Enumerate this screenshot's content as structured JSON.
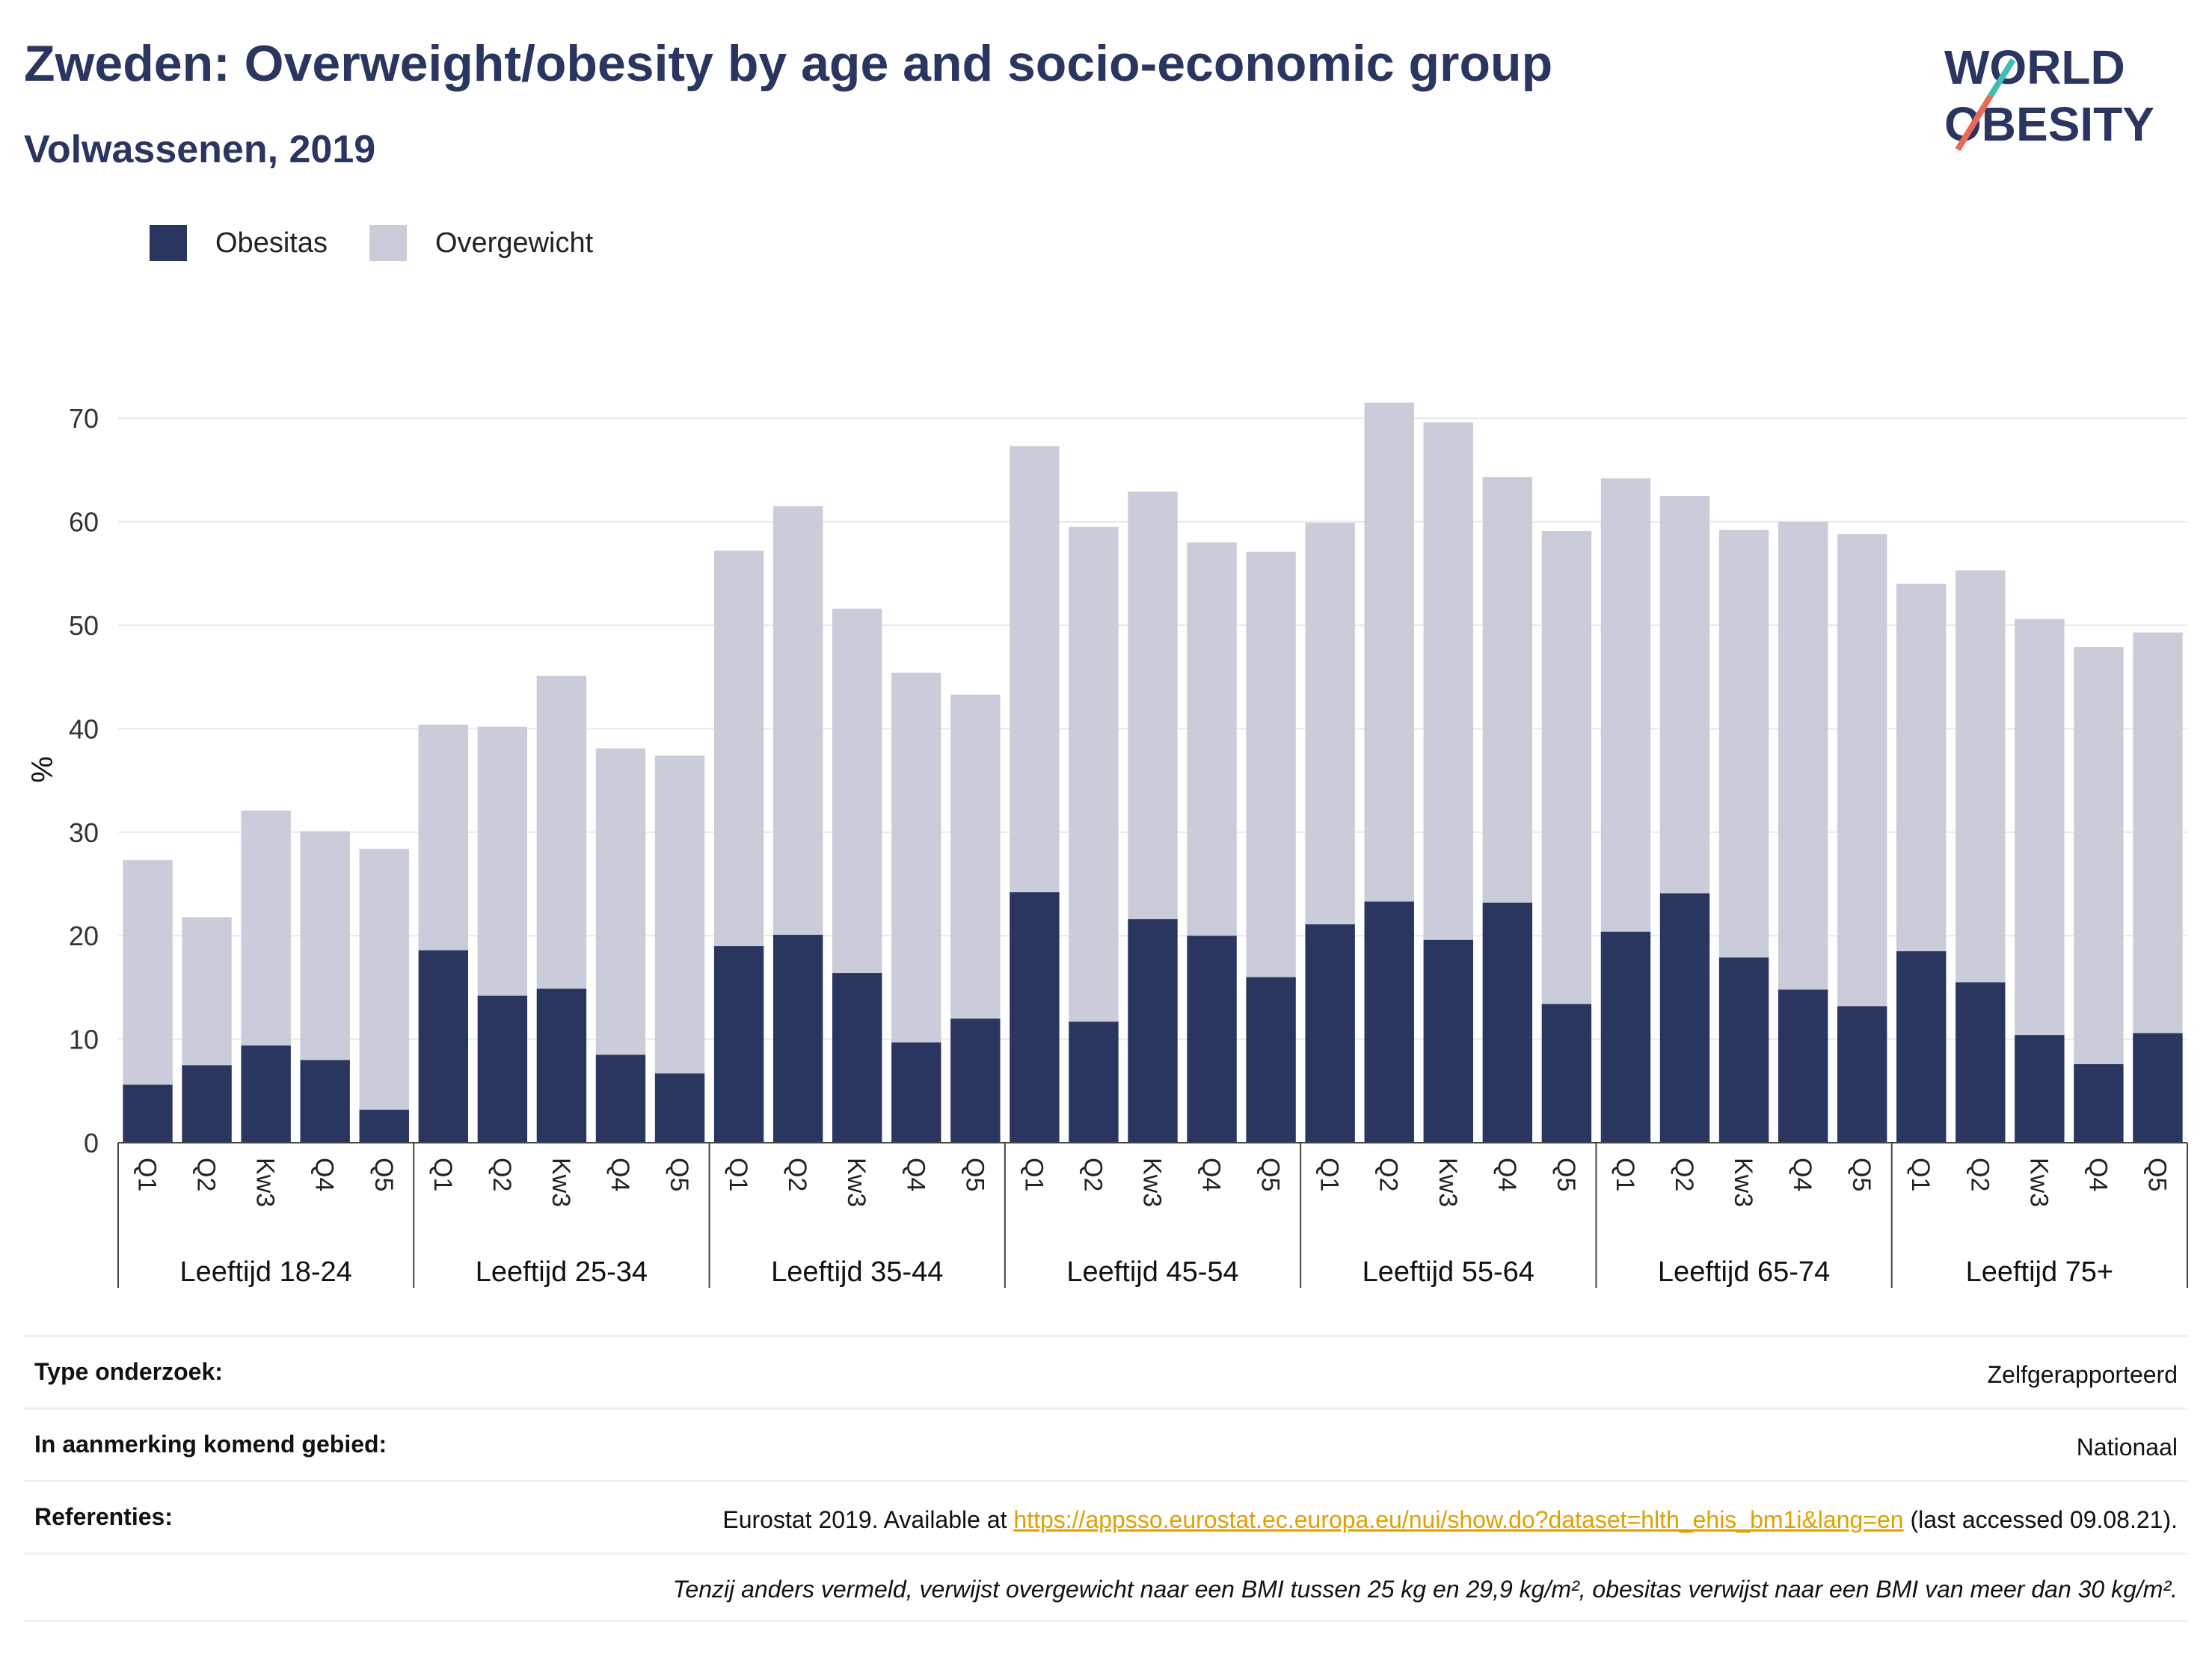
{
  "title": "Zweden: Overweight/obesity by age and socio-economic group",
  "subtitle": "Volwassenen, 2019",
  "logo": {
    "line1": "WORLD",
    "line2": "OBESITY"
  },
  "colors": {
    "obesity": "#2a3560",
    "overweight": "#cacdd9",
    "accent_red": "#e8685a",
    "accent_teal": "#3fbfb2",
    "link": "#e0a000"
  },
  "legend": [
    {
      "label": "Obesitas",
      "color": "#2a3560"
    },
    {
      "label": "Overgewicht",
      "color": "#cacdd9"
    }
  ],
  "chart_data": {
    "type": "bar",
    "stacked": true,
    "ylabel": "%",
    "ylim": [
      0,
      75
    ],
    "yticks": [
      0,
      10,
      20,
      30,
      40,
      50,
      60,
      70
    ],
    "grid": true,
    "legend_position": "top-left",
    "groups": [
      "Leeftijd 18-24",
      "Leeftijd 25-34",
      "Leeftijd 35-44",
      "Leeftijd 45-54",
      "Leeftijd 55-64",
      "Leeftijd 65-74",
      "Leeftijd 75+"
    ],
    "categories": [
      "Q1",
      "Q2",
      "Kw3",
      "Q4",
      "Q5"
    ],
    "series": [
      {
        "name": "Obesitas",
        "values": [
          [
            5.6,
            7.5,
            9.4,
            8.0,
            3.2
          ],
          [
            18.6,
            14.2,
            14.9,
            8.5,
            6.7
          ],
          [
            19.0,
            20.1,
            16.4,
            9.7,
            12.0
          ],
          [
            24.2,
            11.7,
            21.6,
            20.0,
            16.0
          ],
          [
            21.1,
            23.3,
            19.6,
            23.2,
            13.4
          ],
          [
            20.4,
            24.1,
            17.9,
            14.8,
            13.2
          ],
          [
            18.5,
            15.5,
            10.4,
            7.6,
            10.6
          ]
        ]
      },
      {
        "name": "Overgewicht",
        "values": [
          [
            21.7,
            14.3,
            22.7,
            22.1,
            25.2
          ],
          [
            21.8,
            26.0,
            30.2,
            29.6,
            30.7
          ],
          [
            38.2,
            41.4,
            35.2,
            35.7,
            31.3
          ],
          [
            43.1,
            47.8,
            41.3,
            38.0,
            41.1
          ],
          [
            38.8,
            48.2,
            50.0,
            41.1,
            45.7
          ],
          [
            43.8,
            38.4,
            41.3,
            45.2,
            45.6
          ],
          [
            35.5,
            39.8,
            40.2,
            40.3,
            38.7
          ]
        ]
      }
    ]
  },
  "info": {
    "rows": [
      {
        "label": "Type onderzoek:",
        "value": "Zelfgerapporteerd"
      },
      {
        "label": "In aanmerking komend gebied:",
        "value": "Nationaal"
      }
    ],
    "references": {
      "label": "Referenties:",
      "prefix": "Eurostat 2019. Available at ",
      "link": "https://appsso.eurostat.ec.europa.eu/nui/show.do?dataset=hlth_ehis_bm1i&lang=en",
      "suffix": " (last accessed 09.08.21)."
    },
    "footnote": "Tenzij anders vermeld, verwijst overgewicht naar een BMI tussen 25 kg en 29,9 kg/m², obesitas verwijst naar een BMI van meer dan 30 kg/m²."
  }
}
